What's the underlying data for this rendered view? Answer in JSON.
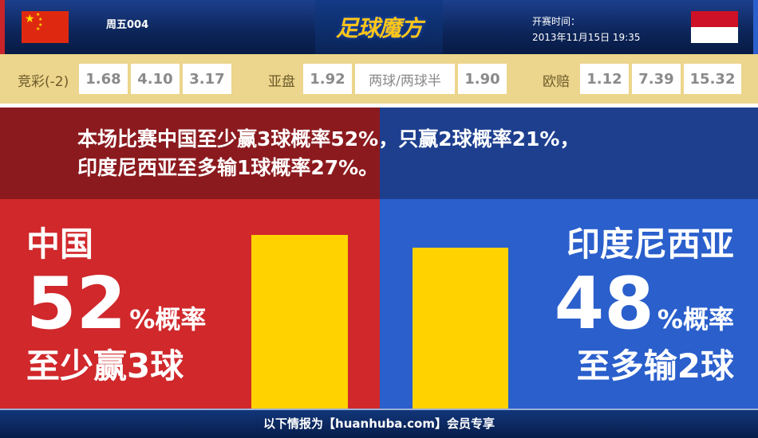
{
  "header": {
    "match_no": "周五004",
    "logo": "足球魔方",
    "kickoff_label": "开赛时间：",
    "kickoff_time": "2013年11月15日 19:35",
    "home_flag": "china-flag",
    "away_flag": "indonesia-flag"
  },
  "odds": {
    "jingcai": {
      "label": "竞彩(-2)",
      "values": [
        "1.68",
        "4.10",
        "3.17"
      ]
    },
    "asian": {
      "label": "亚盘",
      "values": [
        "1.92",
        "两球/两球半",
        "1.90"
      ]
    },
    "euro": {
      "label": "欧赔",
      "values": [
        "1.12",
        "7.39",
        "15.32"
      ]
    }
  },
  "summary": {
    "line1": "本场比赛中国至少赢3球概率52%，只赢2球概率21%，",
    "line2": "印度尼西亚至多输1球概率27%。"
  },
  "home": {
    "team": "中国",
    "percent": "52",
    "percent_suffix": "%概率",
    "outcome": "至少赢3球",
    "bar_value": 52,
    "color": "#d0282b"
  },
  "away": {
    "team": "印度尼西亚",
    "percent": "48",
    "percent_suffix": "%概率",
    "outcome": "至多输2球",
    "bar_value": 48,
    "color": "#2a5fcc"
  },
  "bar_color": "#ffd200",
  "footer": {
    "text": "以下情报为【huanhuba.com】会员专享"
  }
}
